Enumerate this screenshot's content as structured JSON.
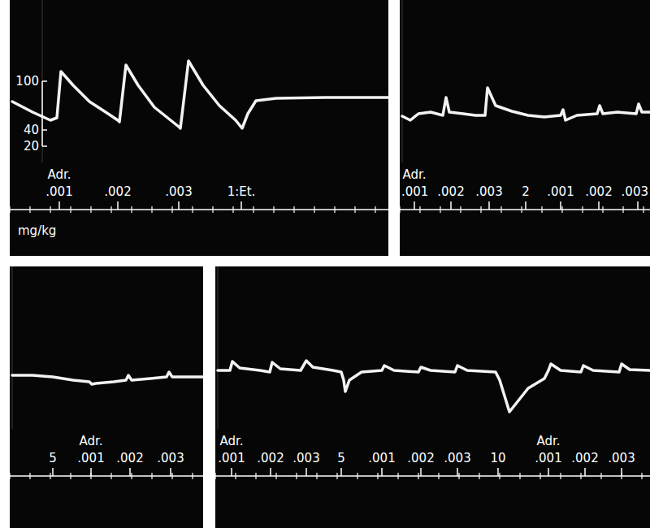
{
  "chart_data": [
    {
      "type": "line",
      "color": "#ffffff",
      "xlim": [
        0,
        18.64
      ],
      "xticks": [
        0,
        1,
        2,
        3,
        4,
        5,
        6,
        7,
        8,
        9,
        10,
        11,
        12,
        13,
        14,
        15,
        16,
        17,
        18
      ],
      "ylim": [
        0,
        200
      ],
      "yticks": [
        20,
        40,
        100
      ],
      "tick_labels": "y",
      "x_label": "mg/kg",
      "x": [
        0.12,
        1.12,
        2.0,
        2.32,
        2.52,
        3.12,
        3.92,
        4.72,
        5.32,
        5.4,
        5.72,
        6.32,
        7.12,
        7.92,
        8.32,
        8.4,
        8.8,
        9.52,
        10.32,
        11.12,
        11.44,
        11.72,
        12.12,
        13.12,
        15.52,
        18.64
      ],
      "values": [
        75,
        62,
        52,
        55,
        112,
        95,
        75,
        62,
        52,
        50,
        120,
        95,
        68,
        52,
        44,
        42,
        125,
        95,
        70,
        52,
        42,
        60,
        76,
        79,
        80,
        80
      ],
      "annotations": [
        {
          "x": 2.44,
          "text": ".001",
          "top_text": "Adr."
        },
        {
          "x": 5.32,
          "text": ".002"
        },
        {
          "x": 8.32,
          "text": ".003"
        },
        {
          "x": 11.4,
          "text": "1:Et."
        }
      ]
    },
    {
      "type": "line",
      "color": "#ffffff",
      "xlim": [
        0,
        12.32
      ],
      "xticks": [
        0,
        1,
        2,
        3,
        4,
        5,
        6,
        7,
        8,
        9,
        10,
        11,
        12
      ],
      "ylim": [
        0,
        200
      ],
      "yticks": [],
      "tick_labels": false,
      "x": [
        0.12,
        0.52,
        0.92,
        1.52,
        2.12,
        2.28,
        2.44,
        3.12,
        3.72,
        4.2,
        4.32,
        4.72,
        5.52,
        6.32,
        7.12,
        7.92,
        8.04,
        8.16,
        8.72,
        9.72,
        9.84,
        10.0,
        10.72,
        11.64,
        11.76,
        11.92,
        12.32
      ],
      "values": [
        57,
        52,
        60,
        62,
        58,
        80,
        62,
        60,
        58,
        58,
        92,
        70,
        63,
        58,
        56,
        58,
        65,
        52,
        58,
        60,
        70,
        60,
        62,
        60,
        72,
        62,
        62
      ],
      "annotations": [
        {
          "x": 0.72,
          "text": ".001",
          "top_text": "Adr."
        },
        {
          "x": 2.52,
          "text": ".002"
        },
        {
          "x": 4.4,
          "text": ".003"
        },
        {
          "x": 6.2,
          "text": "2"
        },
        {
          "x": 7.92,
          "text": ".001"
        },
        {
          "x": 9.8,
          "text": ".002"
        },
        {
          "x": 11.72,
          "text": ".003"
        }
      ]
    },
    {
      "type": "line",
      "color": "#ffffff",
      "xlim": [
        0,
        9.52
      ],
      "xticks": [
        0,
        1,
        2,
        3,
        4,
        5,
        6,
        7,
        8,
        9
      ],
      "ylim": [
        0,
        200
      ],
      "yticks": [],
      "tick_labels": false,
      "x": [
        0.12,
        1.12,
        2.12,
        3.12,
        3.92,
        4.04,
        4.24,
        5.12,
        5.72,
        5.84,
        6.0,
        6.92,
        7.72,
        7.84,
        8.0,
        9.52
      ],
      "values": [
        66,
        66,
        64,
        60,
        58,
        55,
        56,
        58,
        60,
        66,
        60,
        62,
        64,
        70,
        64,
        64
      ],
      "annotations": [
        {
          "x": 2.12,
          "text": "5"
        },
        {
          "x": 4.0,
          "text": ".001",
          "top_text": "Adr."
        },
        {
          "x": 5.92,
          "text": ".002"
        },
        {
          "x": 7.92,
          "text": ".003"
        }
      ]
    },
    {
      "type": "line",
      "color": "#ffffff",
      "xlim": [
        0,
        21.4
      ],
      "xticks": [
        0,
        1,
        2,
        3,
        4,
        5,
        6,
        7,
        8,
        9,
        10,
        11,
        12,
        13,
        14,
        15,
        16,
        17,
        18,
        19,
        20,
        21
      ],
      "ylim": [
        0,
        200
      ],
      "yticks": [],
      "tick_labels": false,
      "x": [
        0.12,
        0.72,
        0.84,
        1.2,
        2.2,
        2.68,
        2.8,
        3.2,
        4.2,
        4.48,
        4.8,
        5.8,
        6.2,
        6.32,
        6.4,
        6.6,
        7.2,
        8.2,
        8.32,
        8.8,
        10.0,
        10.12,
        10.6,
        11.8,
        11.92,
        12.4,
        13.8,
        14.0,
        14.48,
        15.4,
        16.2,
        16.4,
        16.52,
        17.0,
        18.0,
        18.12,
        18.6,
        19.88,
        20.0,
        20.4,
        21.4
      ],
      "values": [
        72,
        72,
        83,
        75,
        72,
        70,
        82,
        74,
        72,
        84,
        76,
        72,
        70,
        60,
        46,
        60,
        70,
        72,
        78,
        72,
        70,
        76,
        72,
        70,
        78,
        72,
        70,
        60,
        21,
        50,
        62,
        72,
        80,
        72,
        70,
        78,
        72,
        70,
        80,
        73,
        72
      ],
      "annotations": [
        {
          "x": 0.8,
          "text": ".001",
          "top_text": "Adr."
        },
        {
          "x": 2.72,
          "text": ".002"
        },
        {
          "x": 4.48,
          "text": ".003"
        },
        {
          "x": 6.2,
          "text": "5"
        },
        {
          "x": 8.2,
          "text": ".001"
        },
        {
          "x": 10.12,
          "text": ".002"
        },
        {
          "x": 11.92,
          "text": ".003"
        },
        {
          "x": 13.92,
          "text": "10"
        },
        {
          "x": 16.4,
          "text": ".001",
          "top_text": "Adr."
        },
        {
          "x": 18.2,
          "text": ".002"
        },
        {
          "x": 20.0,
          "text": ".003"
        }
      ]
    }
  ]
}
